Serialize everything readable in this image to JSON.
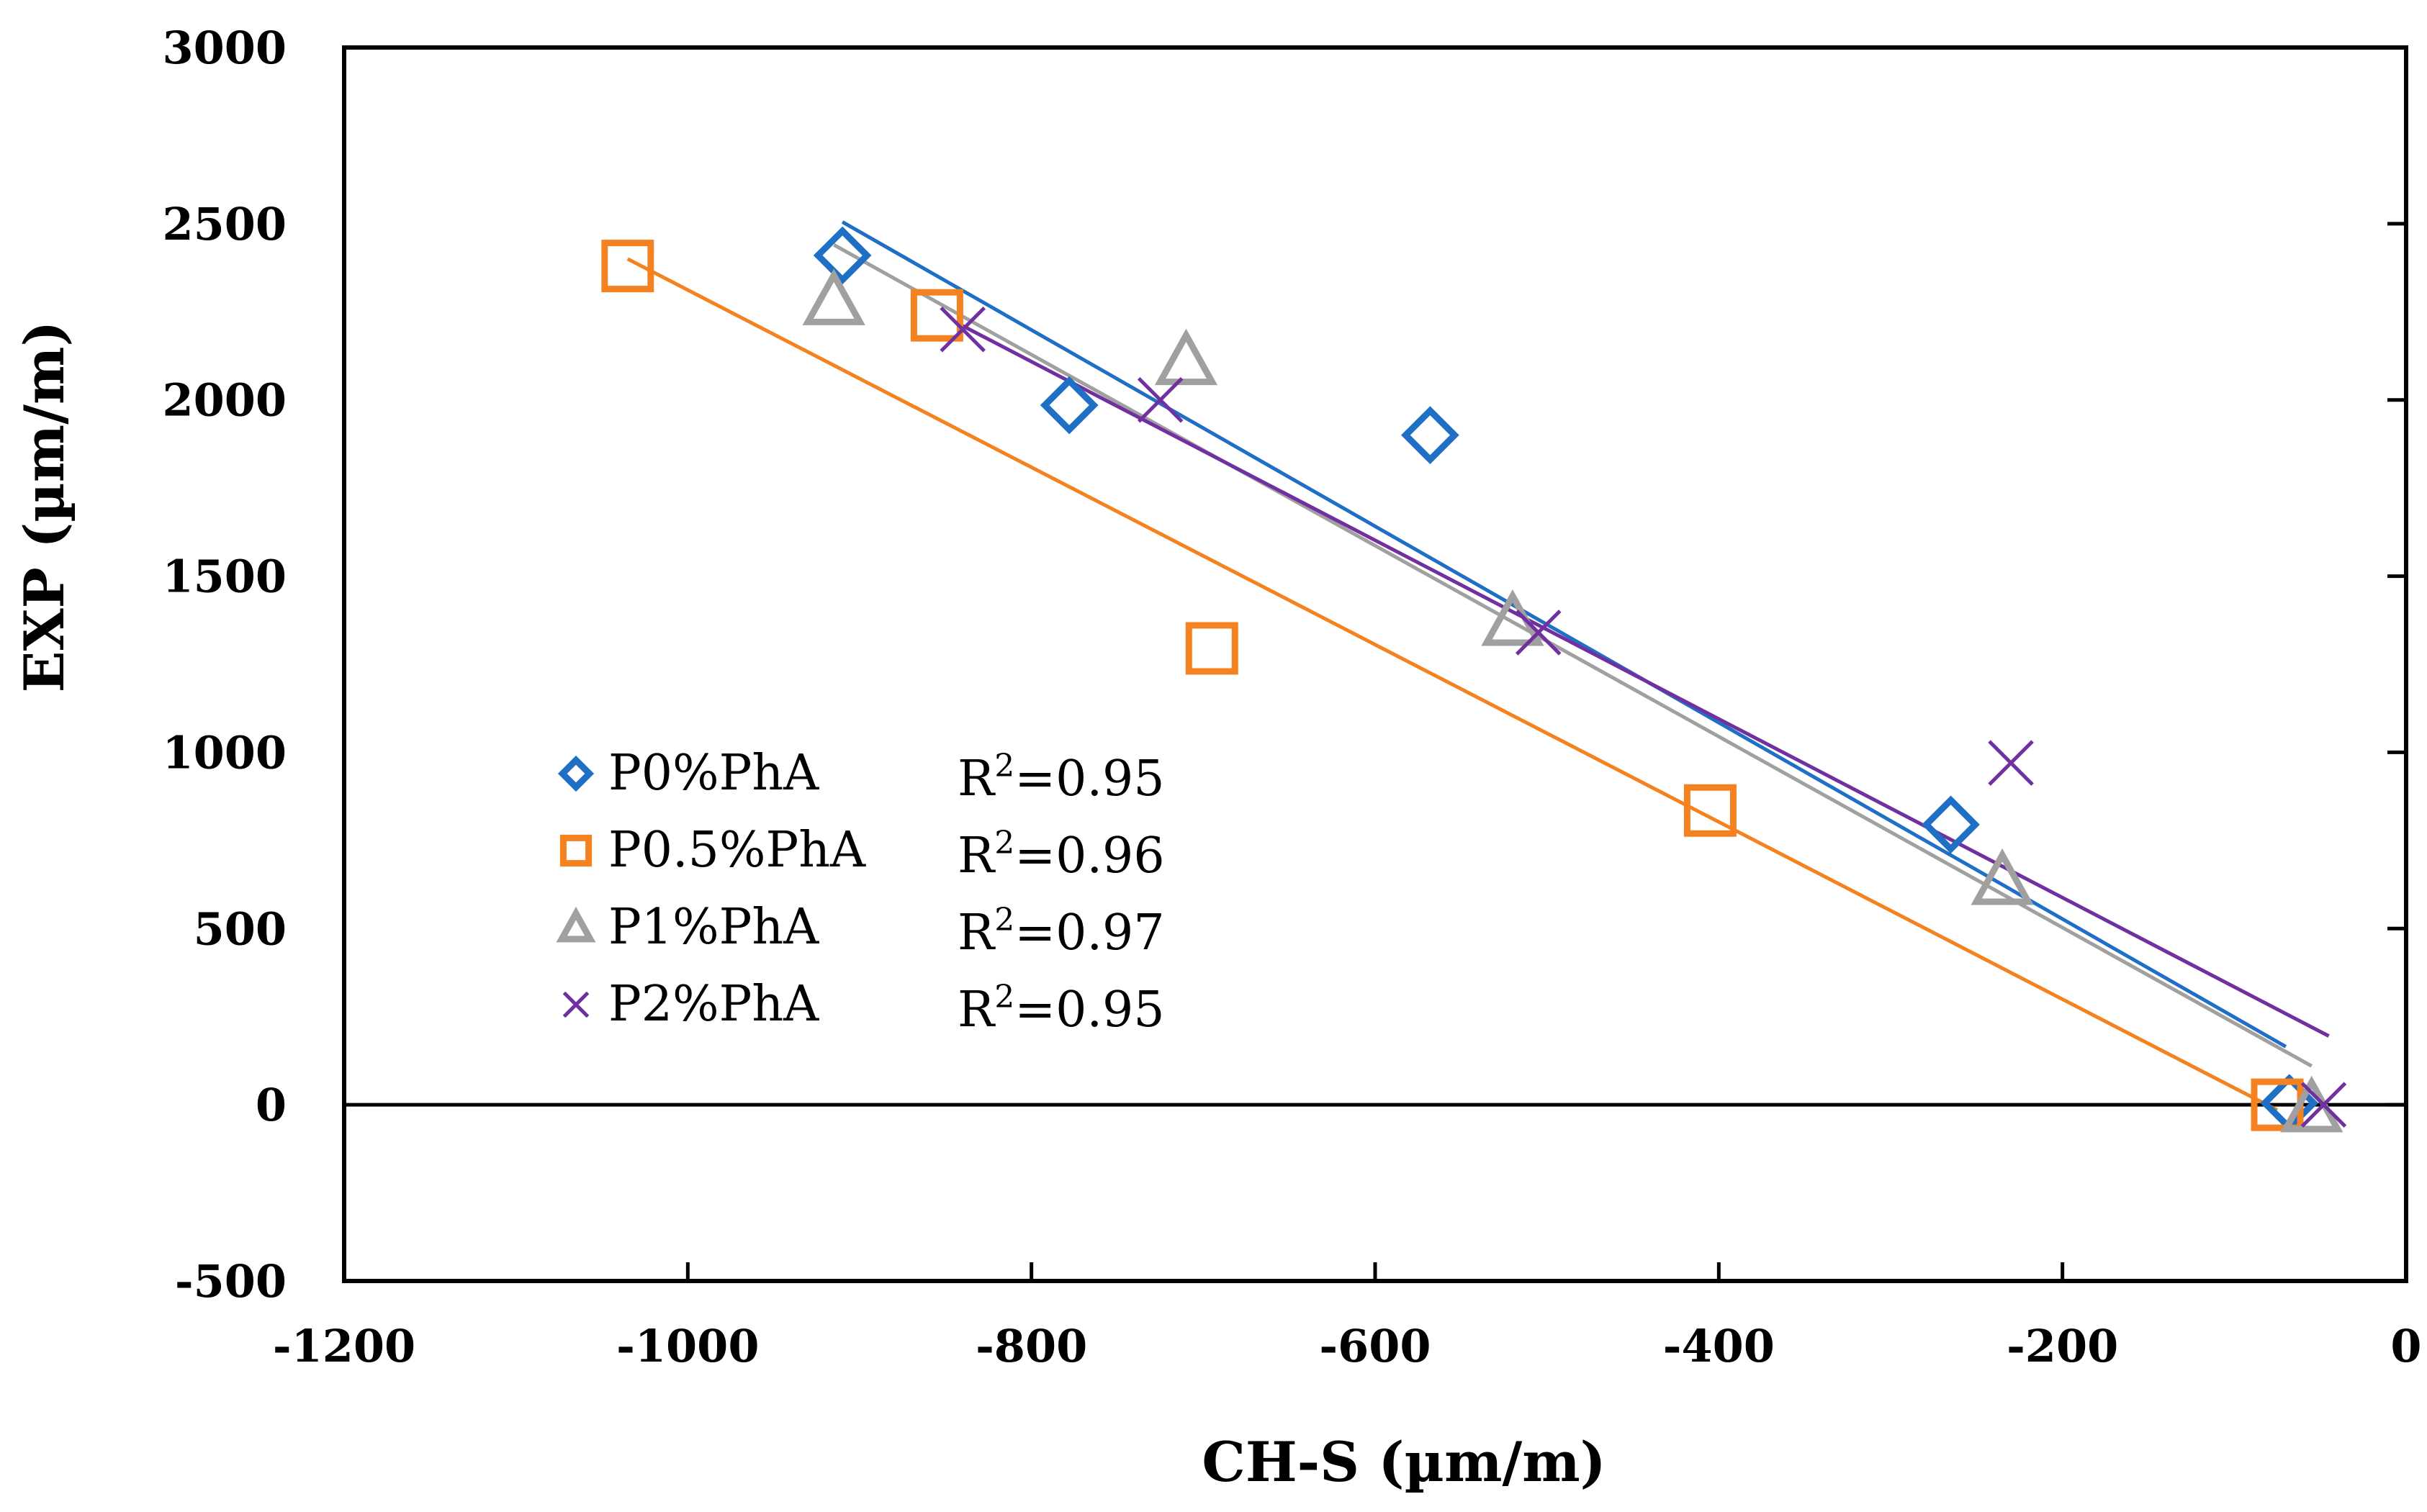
{
  "chart_data": {
    "type": "scatter",
    "title": "",
    "xlabel": "CH-S (µm/m)",
    "ylabel": "EXP (µm/m)",
    "xlim": [
      -1200,
      0
    ],
    "ylim": [
      -500,
      3000
    ],
    "xticks": [
      -1200,
      -1000,
      -800,
      -600,
      -400,
      -200,
      0
    ],
    "yticks": [
      -500,
      0,
      500,
      1000,
      1500,
      2000,
      2500,
      3000
    ],
    "grid": false,
    "legend": "center-left",
    "series": [
      {
        "name": "P0%PhA",
        "marker": "diamond",
        "color": "#1f6fc5",
        "r2": "R2=0.95",
        "r2_base": "R",
        "r2_sup": "2",
        "r2_val": "=0.95",
        "points": [
          [
            -910,
            2410
          ],
          [
            -778,
            1985
          ],
          [
            -568,
            1900
          ],
          [
            -265,
            795
          ],
          [
            -68,
            5
          ]
        ],
        "trendline": [
          [
            -910,
            2505
          ],
          [
            -70,
            165
          ]
        ]
      },
      {
        "name": "P0.5%PhA",
        "marker": "square",
        "color": "#f58220",
        "r2": "R2=0.96",
        "r2_base": "R",
        "r2_sup": "2",
        "r2_val": "=0.96",
        "points": [
          [
            -1035,
            2380
          ],
          [
            -855,
            2240
          ],
          [
            -695,
            1295
          ],
          [
            -405,
            835
          ],
          [
            -75,
            0
          ]
        ],
        "trendline": [
          [
            -1035,
            2400
          ],
          [
            -75,
            -15
          ]
        ]
      },
      {
        "name": "P1%PhA",
        "marker": "triangle",
        "color": "#a0a0a0",
        "r2": "R2=0.97",
        "r2_base": "R",
        "r2_sup": "2",
        "r2_val": "=0.97",
        "points": [
          [
            -915,
            2280
          ],
          [
            -710,
            2110
          ],
          [
            -520,
            1370
          ],
          [
            -235,
            635
          ],
          [
            -55,
            -10
          ]
        ],
        "trendline": [
          [
            -915,
            2440
          ],
          [
            -55,
            110
          ]
        ]
      },
      {
        "name": "P2%PhA",
        "marker": "x",
        "color": "#7030a0",
        "r2": "R2=0.95",
        "r2_base": "R",
        "r2_sup": "2",
        "r2_val": "=0.95",
        "points": [
          [
            -840,
            2200
          ],
          [
            -725,
            2000
          ],
          [
            -505,
            1340
          ],
          [
            -230,
            970
          ],
          [
            -48,
            0
          ]
        ],
        "trendline": [
          [
            -840,
            2210
          ],
          [
            -45,
            195
          ]
        ]
      }
    ]
  }
}
